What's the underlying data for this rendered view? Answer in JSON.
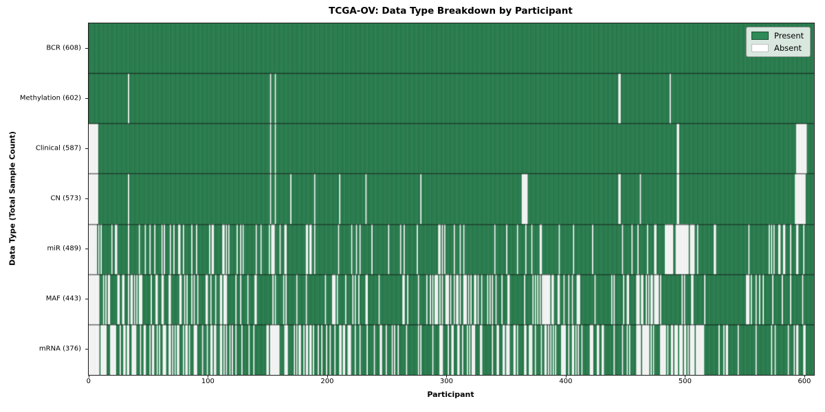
{
  "title": "TCGA-OV: Data Type Breakdown by Participant",
  "axes": {
    "xlabel": "Participant",
    "ylabel": "Data Type (Total Sample Count)"
  },
  "legend": {
    "items": [
      {
        "label": "Present",
        "color": "#2e8b57"
      },
      {
        "label": "Absent",
        "color": "#ffffff"
      }
    ]
  },
  "chart_data": {
    "type": "heatmap",
    "title": "TCGA-OV: Data Type Breakdown by Participant",
    "xlabel": "Participant",
    "ylabel": "Data Type (Total Sample Count)",
    "legend": [
      "Present",
      "Absent"
    ],
    "legend_position": "upper right",
    "total_participants": 608,
    "x_ticks": [
      0,
      100,
      200,
      300,
      400,
      500,
      600
    ],
    "colors": {
      "present": "#2e8b57",
      "absent": "#ffffff",
      "present_edge": "rgba(0,0,0,0.30)",
      "absent_edge": "rgba(0,0,0,0.13)",
      "row_separator": "rgba(0,0,0,0.85)"
    },
    "rows": [
      {
        "data_type": "BCR",
        "label": "BCR (608)",
        "present_count": 608,
        "absent_count": 0,
        "absent_exact": [],
        "absent_segments": []
      },
      {
        "data_type": "Methylation",
        "label": "Methylation (602)",
        "present_count": 602,
        "absent_count": 6,
        "absent_exact": [
          33,
          152,
          156,
          444,
          445,
          487
        ],
        "absent_segments": []
      },
      {
        "data_type": "Clinical",
        "label": "Clinical (587)",
        "present_count": 587,
        "absent_count": 21,
        "absent_exact": [
          0,
          1,
          2,
          3,
          4,
          5,
          6,
          7,
          152,
          156,
          493,
          494,
          593,
          594,
          595,
          596,
          597,
          598,
          599,
          600,
          601
        ],
        "absent_segments": []
      },
      {
        "data_type": "CN",
        "label": "CN (573)",
        "present_count": 573,
        "absent_count": 35,
        "absent_exact": [
          0,
          1,
          2,
          3,
          4,
          5,
          6,
          7,
          33,
          152,
          156,
          169,
          189,
          210,
          232,
          278,
          363,
          364,
          365,
          366,
          367,
          444,
          445,
          462,
          493,
          494,
          592,
          593,
          594,
          595,
          596,
          597,
          598,
          599,
          600
        ],
        "absent_segments": []
      },
      {
        "data_type": "miR",
        "label": "miR (489)",
        "present_count": 489,
        "absent_count": 119,
        "absent_exact": [],
        "absent_segments": [
          [
            0,
            6,
            6
          ],
          [
            6,
            30,
            6
          ],
          [
            30,
            130,
            24
          ],
          [
            130,
            260,
            20
          ],
          [
            260,
            370,
            14
          ],
          [
            370,
            480,
            12
          ],
          [
            483,
            508,
            22
          ],
          [
            510,
            570,
            4
          ],
          [
            570,
            603,
            11
          ]
        ]
      },
      {
        "data_type": "MAF",
        "label": "MAF (443)",
        "present_count": 443,
        "absent_count": 165,
        "absent_exact": [],
        "absent_segments": [
          [
            0,
            6,
            6
          ],
          [
            6,
            60,
            22
          ],
          [
            60,
            140,
            24
          ],
          [
            140,
            285,
            24
          ],
          [
            285,
            330,
            24
          ],
          [
            330,
            370,
            8
          ],
          [
            370,
            390,
            13
          ],
          [
            390,
            450,
            12
          ],
          [
            450,
            482,
            16
          ],
          [
            482,
            560,
            10
          ],
          [
            560,
            603,
            6
          ]
        ]
      },
      {
        "data_type": "mRNA",
        "label": "mRNA (376)",
        "present_count": 376,
        "absent_count": 232,
        "absent_exact": [],
        "absent_segments": [
          [
            0,
            6,
            6
          ],
          [
            6,
            30,
            15
          ],
          [
            30,
            130,
            45
          ],
          [
            130,
            250,
            44
          ],
          [
            250,
            479,
            80
          ],
          [
            479,
            516,
            28
          ],
          [
            516,
            587,
            9
          ],
          [
            587,
            603,
            5
          ]
        ]
      }
    ]
  }
}
